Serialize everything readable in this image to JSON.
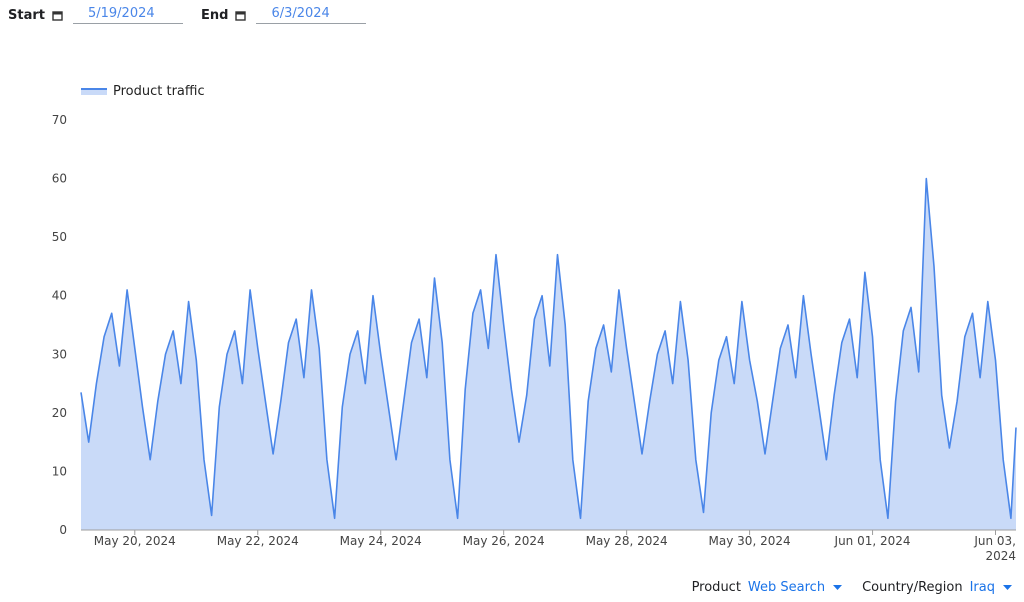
{
  "controls": {
    "start_label": "Start",
    "start_value": "5/19/2024",
    "end_label": "End",
    "end_value": "6/3/2024"
  },
  "chart_data": {
    "type": "area",
    "legend": "top-left",
    "x": [
      3,
      6,
      9,
      12,
      15,
      18,
      21,
      24,
      27,
      30,
      33,
      36,
      39,
      42,
      45,
      48,
      51,
      54,
      57,
      60,
      63,
      66,
      69,
      72,
      75,
      78,
      81,
      84,
      87,
      90,
      93,
      96,
      99,
      102,
      105,
      108,
      111,
      114,
      117,
      120,
      123,
      126,
      129,
      132,
      135,
      138,
      141,
      144,
      147,
      150,
      153,
      156,
      159,
      162,
      165,
      168,
      171,
      174,
      177,
      180,
      183,
      186,
      189,
      192,
      195,
      198,
      201,
      204,
      207,
      210,
      213,
      216,
      219,
      222,
      225,
      228,
      231,
      234,
      237,
      240,
      243,
      246,
      249,
      252,
      255,
      258,
      261,
      264,
      267,
      270,
      273,
      276,
      279,
      282,
      285,
      288,
      291,
      294,
      297,
      300,
      303,
      306,
      309,
      312,
      315,
      318,
      321,
      324,
      327,
      330,
      333,
      336,
      339,
      342,
      345,
      348,
      351,
      354,
      357,
      360,
      363,
      366,
      368
    ],
    "series": [
      {
        "name": "Product traffic",
        "color": "#4a86e8",
        "fill_color": "#c9daf8",
        "values": [
          23.5,
          15,
          25,
          33,
          37,
          28,
          41,
          31,
          21,
          12,
          22,
          30,
          34,
          25,
          39,
          29,
          12,
          2.5,
          21,
          30,
          34,
          25,
          41,
          31,
          22,
          13,
          22,
          32,
          36,
          26,
          41,
          31,
          12,
          2,
          21,
          30,
          34,
          25,
          40,
          30,
          21,
          12,
          22,
          32,
          36,
          26,
          43,
          32,
          12,
          2,
          24,
          37,
          41,
          31,
          47,
          35,
          24,
          15,
          23,
          36,
          40,
          28,
          47,
          35,
          12,
          2,
          22,
          31,
          35,
          27,
          41,
          31,
          22,
          13,
          22,
          30,
          34,
          25,
          39,
          29,
          12,
          3,
          20,
          29,
          33,
          25,
          39,
          29,
          22,
          13,
          22,
          31,
          35,
          26,
          40,
          30,
          21,
          12,
          23,
          32,
          36,
          26,
          44,
          33,
          12,
          2,
          22,
          34,
          38,
          27,
          60,
          45,
          23,
          14,
          22,
          33,
          37,
          26,
          39,
          29,
          12,
          2,
          17.5
        ]
      }
    ],
    "xlim": [
      3,
      368
    ],
    "xticks": [
      {
        "value": 24,
        "label": "May 20, 2024"
      },
      {
        "value": 72,
        "label": "May 22, 2024"
      },
      {
        "value": 120,
        "label": "May 24, 2024"
      },
      {
        "value": 168,
        "label": "May 26, 2024"
      },
      {
        "value": 216,
        "label": "May 28, 2024"
      },
      {
        "value": 264,
        "label": "May 30, 2024"
      },
      {
        "value": 312,
        "label": "Jun 01, 2024"
      },
      {
        "value": 360,
        "label": "Jun 03, 2024"
      }
    ],
    "ylim": [
      0,
      70
    ],
    "yticks": [
      0,
      10,
      20,
      30,
      40,
      50,
      60,
      70
    ],
    "grid": false
  },
  "filters": [
    {
      "label": "Product",
      "value": "Web Search"
    },
    {
      "label": "Country/Region",
      "value": "Iraq"
    }
  ]
}
